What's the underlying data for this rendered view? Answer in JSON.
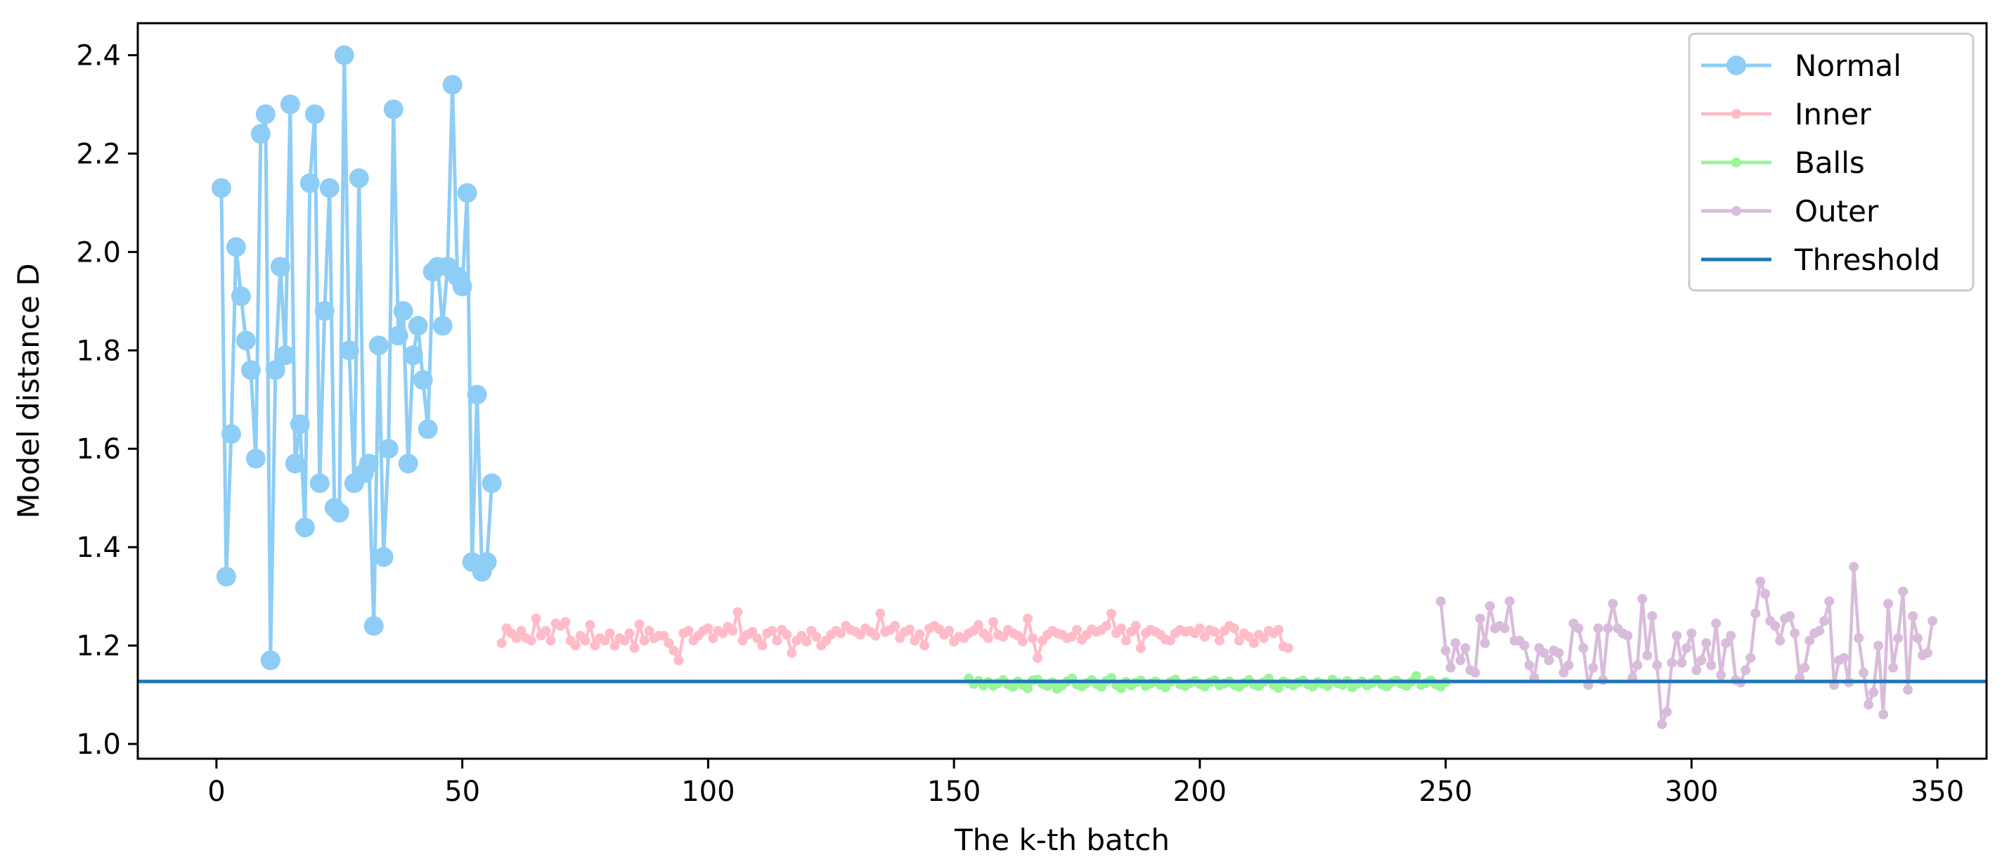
{
  "chart_data": {
    "type": "line",
    "xlabel": "The k-th batch",
    "ylabel": "Model distance D",
    "xlim": [
      -16,
      360
    ],
    "ylim": [
      0.97,
      2.465
    ],
    "x_ticks": [
      0,
      50,
      100,
      150,
      200,
      250,
      300,
      350
    ],
    "y_ticks": [
      1.0,
      1.2,
      1.4,
      1.6,
      1.8,
      2.0,
      2.2,
      2.4
    ],
    "x_tick_labels": [
      "0",
      "50",
      "100",
      "150",
      "200",
      "250",
      "300",
      "350"
    ],
    "y_tick_labels": [
      "1.0",
      "1.2",
      "1.4",
      "1.6",
      "1.8",
      "2.0",
      "2.2",
      "2.4"
    ],
    "grid": false,
    "legend_position": "top-right",
    "series": [
      {
        "name": "Normal",
        "color": "#8ecdf6",
        "marker": "large-circle",
        "x_start": 1,
        "values": [
          2.13,
          1.34,
          1.63,
          2.01,
          1.91,
          1.82,
          1.76,
          1.58,
          2.24,
          2.28,
          1.17,
          1.76,
          1.97,
          1.79,
          2.3,
          1.57,
          1.65,
          1.44,
          2.14,
          2.28,
          1.53,
          1.88,
          2.13,
          1.48,
          1.47,
          2.4,
          1.8,
          1.53,
          2.15,
          1.55,
          1.57,
          1.24,
          1.81,
          1.38,
          1.6,
          2.29,
          1.83,
          1.88,
          1.57,
          1.79,
          1.85,
          1.74,
          1.64,
          1.96,
          1.97,
          1.85,
          1.97,
          2.34,
          1.95,
          1.93,
          2.12,
          1.37,
          1.71,
          1.35,
          1.37,
          1.53
        ]
      },
      {
        "name": "Inner",
        "color": "#ffbcc8",
        "marker": "small-circle",
        "x_start": 58,
        "values": [
          1.205,
          1.235,
          1.225,
          1.215,
          1.23,
          1.215,
          1.21,
          1.255,
          1.22,
          1.23,
          1.21,
          1.245,
          1.24,
          1.248,
          1.21,
          1.2,
          1.22,
          1.21,
          1.242,
          1.2,
          1.215,
          1.21,
          1.225,
          1.2,
          1.215,
          1.21,
          1.225,
          1.195,
          1.243,
          1.21,
          1.23,
          1.215,
          1.22,
          1.22,
          1.205,
          1.19,
          1.17,
          1.225,
          1.23,
          1.21,
          1.22,
          1.23,
          1.235,
          1.215,
          1.23,
          1.225,
          1.238,
          1.23,
          1.268,
          1.21,
          1.222,
          1.228,
          1.215,
          1.2,
          1.225,
          1.23,
          1.21,
          1.232,
          1.222,
          1.185,
          1.21,
          1.22,
          1.208,
          1.23,
          1.218,
          1.2,
          1.21,
          1.222,
          1.23,
          1.225,
          1.24,
          1.232,
          1.228,
          1.222,
          1.235,
          1.228,
          1.22,
          1.265,
          1.228,
          1.232,
          1.24,
          1.215,
          1.228,
          1.233,
          1.21,
          1.223,
          1.2,
          1.235,
          1.24,
          1.233,
          1.222,
          1.23,
          1.208,
          1.218,
          1.215,
          1.225,
          1.23,
          1.242,
          1.225,
          1.215,
          1.248,
          1.222,
          1.218,
          1.232,
          1.225,
          1.22,
          1.208,
          1.255,
          1.215,
          1.175,
          1.21,
          1.222,
          1.23,
          1.225,
          1.222,
          1.215,
          1.218,
          1.232,
          1.212,
          1.222,
          1.233,
          1.228,
          1.232,
          1.24,
          1.265,
          1.225,
          1.235,
          1.21,
          1.228,
          1.24,
          1.195,
          1.225,
          1.232,
          1.228,
          1.222,
          1.212,
          1.21,
          1.225,
          1.232,
          1.228,
          1.23,
          1.225,
          1.235,
          1.218,
          1.232,
          1.228,
          1.21,
          1.23,
          1.24,
          1.235,
          1.21,
          1.225,
          1.218,
          1.205,
          1.222,
          1.215,
          1.23,
          1.225,
          1.232,
          1.198,
          1.195
        ]
      },
      {
        "name": "Balls",
        "color": "#98f598",
        "marker": "small-circle",
        "x_start": 153,
        "values": [
          1.133,
          1.122,
          1.128,
          1.119,
          1.126,
          1.118,
          1.124,
          1.13,
          1.121,
          1.116,
          1.127,
          1.12,
          1.113,
          1.129,
          1.131,
          1.122,
          1.118,
          1.125,
          1.112,
          1.119,
          1.127,
          1.133,
          1.121,
          1.117,
          1.124,
          1.13,
          1.122,
          1.116,
          1.128,
          1.134,
          1.12,
          1.113,
          1.126,
          1.119,
          1.125,
          1.129,
          1.118,
          1.123,
          1.127,
          1.12,
          1.115,
          1.126,
          1.131,
          1.121,
          1.118,
          1.124,
          1.128,
          1.122,
          1.117,
          1.125,
          1.129,
          1.119,
          1.123,
          1.127,
          1.12,
          1.116,
          1.124,
          1.13,
          1.121,
          1.118,
          1.126,
          1.133,
          1.12,
          1.114,
          1.127,
          1.123,
          1.119,
          1.125,
          1.129,
          1.121,
          1.117,
          1.126,
          1.122,
          1.118,
          1.131,
          1.124,
          1.12,
          1.128,
          1.115,
          1.122,
          1.127,
          1.119,
          1.124,
          1.13,
          1.121,
          1.117,
          1.125,
          1.129,
          1.122,
          1.118,
          1.126,
          1.138,
          1.12,
          1.124,
          1.129,
          1.121,
          1.117,
          1.126
        ]
      },
      {
        "name": "Outer",
        "color": "#d9bcdb",
        "marker": "small-circle",
        "x_start": 249,
        "values": [
          1.29,
          1.19,
          1.155,
          1.205,
          1.17,
          1.195,
          1.15,
          1.145,
          1.255,
          1.205,
          1.28,
          1.235,
          1.24,
          1.235,
          1.29,
          1.21,
          1.21,
          1.2,
          1.16,
          1.135,
          1.195,
          1.185,
          1.17,
          1.19,
          1.185,
          1.145,
          1.16,
          1.245,
          1.235,
          1.195,
          1.12,
          1.155,
          1.235,
          1.13,
          1.235,
          1.285,
          1.235,
          1.225,
          1.22,
          1.135,
          1.16,
          1.295,
          1.18,
          1.26,
          1.16,
          1.04,
          1.065,
          1.165,
          1.22,
          1.165,
          1.195,
          1.225,
          1.15,
          1.17,
          1.205,
          1.16,
          1.245,
          1.14,
          1.205,
          1.22,
          1.13,
          1.125,
          1.15,
          1.175,
          1.265,
          1.33,
          1.305,
          1.25,
          1.24,
          1.21,
          1.255,
          1.26,
          1.225,
          1.135,
          1.155,
          1.21,
          1.225,
          1.23,
          1.25,
          1.29,
          1.12,
          1.17,
          1.175,
          1.125,
          1.36,
          1.215,
          1.145,
          1.08,
          1.105,
          1.2,
          1.06,
          1.285,
          1.155,
          1.215,
          1.31,
          1.11,
          1.26,
          1.215,
          1.18,
          1.185,
          1.25
        ]
      },
      {
        "name": "Threshold",
        "color": "#1f77b4",
        "marker": "none",
        "type": "hline",
        "y": 1.127
      }
    ]
  }
}
